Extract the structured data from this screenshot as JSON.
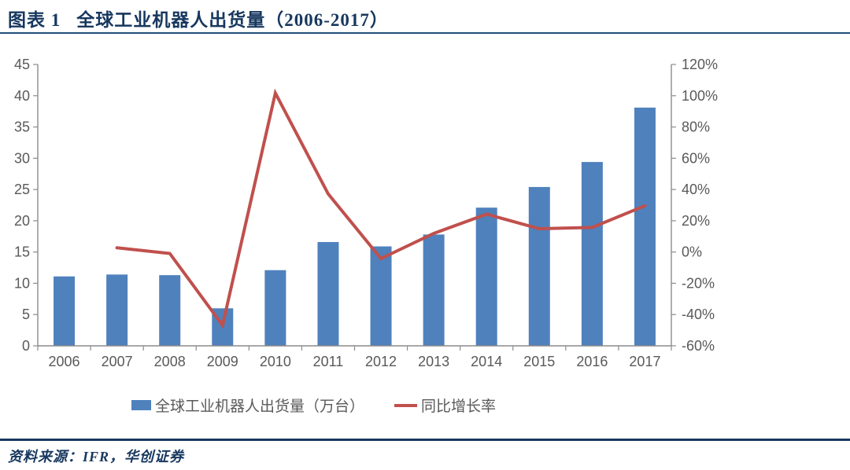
{
  "header": {
    "figure_label": "图表 1"
  },
  "footer": {
    "source": "资料来源：IFR，华创证券"
  },
  "colors": {
    "bar_blue": "#4F81BD",
    "line_red": "#C0504D",
    "title_navy": "#17375E",
    "rule_blue": "#1F4E79",
    "axis_gray": "#8C8C8C",
    "label_gray": "#595959"
  },
  "chart_data": {
    "type": "bar+line combo",
    "title": "全球工业机器人出货量（2006-2017）",
    "categories": [
      "2006",
      "2007",
      "2008",
      "2009",
      "2010",
      "2011",
      "2012",
      "2013",
      "2014",
      "2015",
      "2016",
      "2017"
    ],
    "series": [
      {
        "name": "全球工业机器人出货量（万台）",
        "type": "bar",
        "axis": "left",
        "color": "#4F81BD",
        "values": [
          11.1,
          11.4,
          11.3,
          6.0,
          12.1,
          16.6,
          15.9,
          17.8,
          22.1,
          25.4,
          29.4,
          38.1
        ]
      },
      {
        "name": "同比增长率",
        "type": "line",
        "axis": "right",
        "color": "#C0504D",
        "values": [
          null,
          2.7,
          -0.9,
          -46.9,
          101.7,
          37.2,
          -4.2,
          11.9,
          24.2,
          14.9,
          15.7,
          29.6
        ]
      }
    ],
    "left_axis": {
      "min": 0,
      "max": 45,
      "step": 5,
      "ticks": [
        0,
        5,
        10,
        15,
        20,
        25,
        30,
        35,
        40,
        45
      ],
      "suffix": ""
    },
    "right_axis": {
      "min": -60,
      "max": 120,
      "step": 20,
      "ticks": [
        -60,
        -40,
        -20,
        0,
        20,
        40,
        60,
        80,
        100,
        120
      ],
      "suffix": "%"
    },
    "grid": false,
    "legend_position": "bottom"
  }
}
